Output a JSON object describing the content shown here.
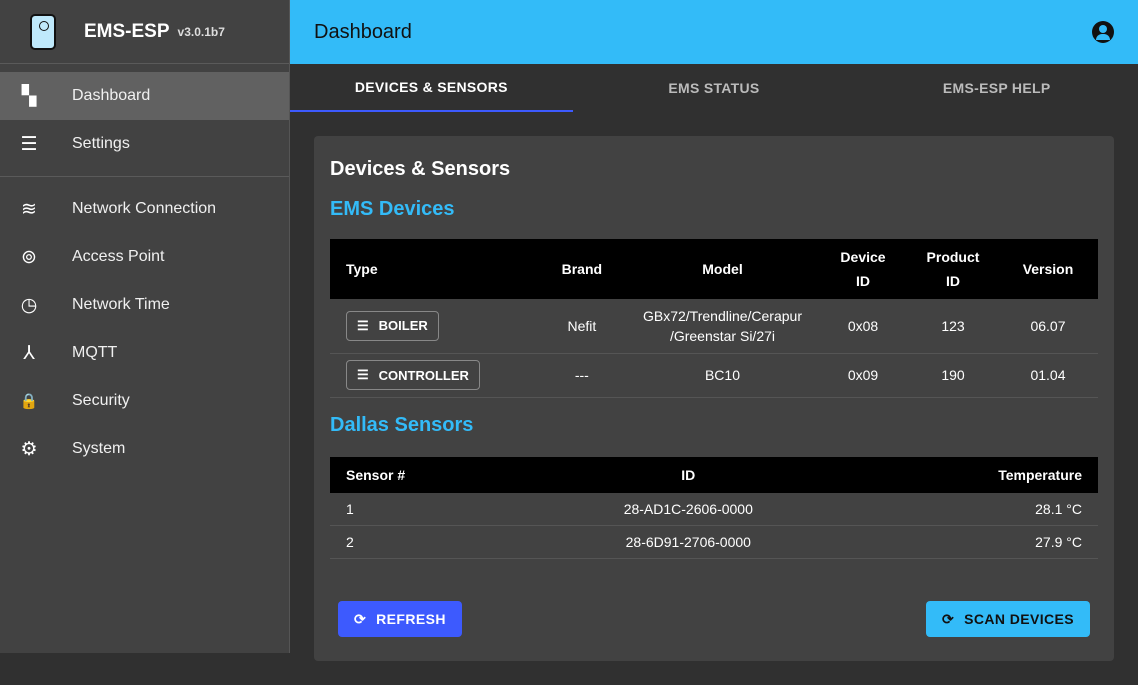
{
  "app": {
    "name": "EMS-ESP",
    "version": "v3.0.1b7"
  },
  "sidebar": {
    "items": [
      {
        "label": "Dashboard",
        "icon": "dashboard-icon",
        "glyph": "▚"
      },
      {
        "label": "Settings",
        "icon": "tune-icon",
        "glyph": "☰"
      },
      {
        "label": "Network Connection",
        "icon": "wifi-icon",
        "glyph": "≋"
      },
      {
        "label": "Access Point",
        "icon": "access-point-icon",
        "glyph": "⊚"
      },
      {
        "label": "Network Time",
        "icon": "clock-icon",
        "glyph": "◷"
      },
      {
        "label": "MQTT",
        "icon": "device-hub-icon",
        "glyph": "⅄"
      },
      {
        "label": "Security",
        "icon": "lock-icon",
        "glyph": "🔒"
      },
      {
        "label": "System",
        "icon": "gear-icon",
        "glyph": "⚙"
      }
    ]
  },
  "header": {
    "title": "Dashboard"
  },
  "tabs": [
    "DEVICES & SENSORS",
    "EMS STATUS",
    "EMS-ESP HELP"
  ],
  "card": {
    "title": "Devices & Sensors",
    "ems_title": "EMS Devices",
    "ems_headers": [
      "Type",
      "Brand",
      "Model",
      "Device ID",
      "Product ID",
      "Version"
    ],
    "ems_rows": [
      {
        "type": "BOILER",
        "brand": "Nefit",
        "model": "GBx72/Trendline/Cerapur /Greenstar Si/27i",
        "device_id": "0x08",
        "product_id": "123",
        "version": "06.07"
      },
      {
        "type": "CONTROLLER",
        "brand": "---",
        "model": "BC10",
        "device_id": "0x09",
        "product_id": "190",
        "version": "01.04"
      }
    ],
    "dallas_title": "Dallas Sensors",
    "dallas_headers": [
      "Sensor #",
      "ID",
      "Temperature"
    ],
    "dallas_rows": [
      {
        "num": "1",
        "id": "28-AD1C-2606-0000",
        "temp": "28.1 °C"
      },
      {
        "num": "2",
        "id": "28-6D91-2706-0000",
        "temp": "27.9 °C"
      }
    ],
    "refresh_label": "REFRESH",
    "scan_label": "SCAN DEVICES"
  },
  "colors": {
    "accent": "#33bbf8",
    "primary": "#3d5afe"
  }
}
